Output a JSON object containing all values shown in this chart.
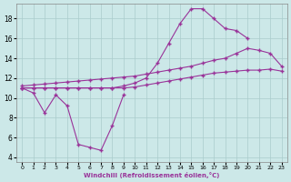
{
  "bg_color": "#cce8e8",
  "grid_color": "#aacccc",
  "line_color": "#993399",
  "xlabel": "Windchill (Refroidissement éolien,°C)",
  "xlim": [
    -0.5,
    23.5
  ],
  "ylim": [
    3.5,
    19.5
  ],
  "xticks": [
    0,
    1,
    2,
    3,
    4,
    5,
    6,
    7,
    8,
    9,
    10,
    11,
    12,
    13,
    14,
    15,
    16,
    17,
    18,
    19,
    20,
    21,
    22,
    23
  ],
  "yticks": [
    4,
    6,
    8,
    10,
    12,
    14,
    16,
    18
  ],
  "curves": [
    {
      "x": [
        0,
        1,
        2,
        3,
        4,
        5,
        6,
        7,
        8,
        9
      ],
      "y": [
        11.0,
        10.5,
        8.5,
        10.3,
        9.2,
        5.3,
        5.0,
        4.7,
        7.2,
        10.3
      ]
    },
    {
      "x": [
        0,
        1,
        2,
        3,
        4,
        5,
        6,
        7,
        8,
        9,
        10,
        11,
        12,
        13,
        14,
        15,
        16,
        17,
        18,
        19,
        20
      ],
      "y": [
        11.0,
        11.0,
        11.0,
        11.0,
        11.0,
        11.0,
        11.0,
        11.0,
        11.0,
        11.2,
        11.5,
        12.0,
        13.5,
        15.5,
        17.5,
        19.0,
        19.0,
        18.0,
        17.0,
        16.8,
        16.0
      ]
    },
    {
      "x": [
        0,
        1,
        2,
        3,
        4,
        5,
        6,
        7,
        8,
        9,
        10,
        11,
        12,
        13,
        14,
        15,
        16,
        17,
        18,
        19,
        20,
        21,
        22,
        23
      ],
      "y": [
        11.2,
        11.3,
        11.4,
        11.5,
        11.6,
        11.7,
        11.8,
        11.9,
        12.0,
        12.1,
        12.2,
        12.4,
        12.6,
        12.8,
        13.0,
        13.2,
        13.5,
        13.8,
        14.0,
        14.5,
        15.0,
        14.8,
        14.5,
        13.2
      ]
    },
    {
      "x": [
        0,
        1,
        2,
        3,
        4,
        5,
        6,
        7,
        8,
        9,
        10,
        11,
        12,
        13,
        14,
        15,
        16,
        17,
        18,
        19,
        20,
        21,
        22,
        23
      ],
      "y": [
        11.0,
        11.0,
        11.0,
        11.0,
        11.0,
        11.0,
        11.0,
        11.0,
        11.0,
        11.0,
        11.1,
        11.3,
        11.5,
        11.7,
        11.9,
        12.1,
        12.3,
        12.5,
        12.6,
        12.7,
        12.8,
        12.8,
        12.9,
        12.7
      ]
    }
  ]
}
